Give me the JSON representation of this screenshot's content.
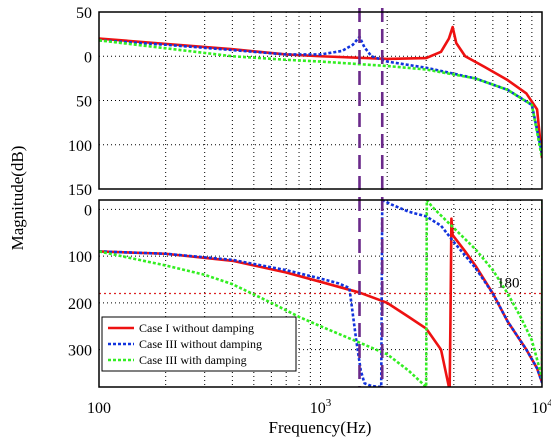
{
  "chart_data": {
    "type": "line",
    "xlabel": "Frequency(Hz)",
    "ylabel": "Magnitude(dB)",
    "x_scale": "log",
    "xlim": [
      100,
      10000
    ],
    "x_ticks": [
      {
        "value": 100,
        "base": "100",
        "exp": ""
      },
      {
        "value": 1000,
        "base": "10",
        "exp": "3"
      },
      {
        "value": 10000,
        "base": "10",
        "exp": "4"
      }
    ],
    "grid": true,
    "legend_position": "bottom-left",
    "vertical_markers": [
      1500,
      1900
    ],
    "panels": [
      {
        "name": "magnitude",
        "ylim": [
          -150,
          50
        ],
        "y_ticks": [
          50,
          0,
          -50,
          -100,
          -150
        ],
        "y_tick_labels": [
          "50",
          "0",
          "50",
          "100",
          "150"
        ],
        "series": [
          {
            "name": "Case I without damping",
            "color": "#ee1111",
            "dash": "solid",
            "points": [
              [
                100,
                20
              ],
              [
                200,
                14
              ],
              [
                400,
                8
              ],
              [
                700,
                2
              ],
              [
                1000,
                0
              ],
              [
                2000,
                -3
              ],
              [
                3000,
                -2
              ],
              [
                3500,
                5
              ],
              [
                3800,
                20
              ],
              [
                3950,
                33
              ],
              [
                4100,
                15
              ],
              [
                4500,
                0
              ],
              [
                5500,
                -12
              ],
              [
                7000,
                -27
              ],
              [
                8500,
                -42
              ],
              [
                9500,
                -60
              ],
              [
                10000,
                -115
              ]
            ]
          },
          {
            "name": "Case III without damping",
            "color": "#1133dd",
            "dash": "dotted",
            "points": [
              [
                100,
                18
              ],
              [
                200,
                13
              ],
              [
                400,
                7
              ],
              [
                700,
                2
              ],
              [
                1000,
                2
              ],
              [
                1250,
                6
              ],
              [
                1400,
                13
              ],
              [
                1500,
                22
              ],
              [
                1580,
                10
              ],
              [
                1700,
                0
              ],
              [
                2000,
                -6
              ],
              [
                3000,
                -13
              ],
              [
                5000,
                -25
              ],
              [
                7000,
                -38
              ],
              [
                9000,
                -55
              ],
              [
                10000,
                -110
              ]
            ]
          },
          {
            "name": "Case III with damping",
            "color": "#33ee22",
            "dash": "dotted",
            "points": [
              [
                100,
                18
              ],
              [
                200,
                9
              ],
              [
                400,
                0
              ],
              [
                700,
                -4
              ],
              [
                1000,
                -6
              ],
              [
                2000,
                -11
              ],
              [
                3000,
                -15
              ],
              [
                5000,
                -25
              ],
              [
                7000,
                -38
              ],
              [
                9000,
                -55
              ],
              [
                10000,
                -115
              ]
            ]
          }
        ]
      },
      {
        "name": "phase",
        "ylim": [
          -380,
          20
        ],
        "y_ticks": [
          0,
          -100,
          -200,
          -300
        ],
        "y_tick_labels": [
          "0",
          "100",
          "200",
          "300"
        ],
        "reference_line": {
          "value": -180,
          "label": "180"
        },
        "series": [
          {
            "name": "Case I without damping",
            "color": "#ee1111",
            "dash": "solid",
            "points": [
              [
                100,
                -90
              ],
              [
                200,
                -95
              ],
              [
                400,
                -110
              ],
              [
                700,
                -135
              ],
              [
                1000,
                -155
              ],
              [
                1500,
                -178
              ],
              [
                2000,
                -200
              ],
              [
                2500,
                -230
              ],
              [
                3000,
                -255
              ],
              [
                3500,
                -300
              ],
              [
                3800,
                -380
              ],
              [
                3830,
                -380
              ],
              [
                3860,
                -240
              ],
              [
                3900,
                -20
              ],
              [
                3950,
                -55
              ],
              [
                4500,
                -90
              ],
              [
                5000,
                -120
              ],
              [
                6000,
                -180
              ],
              [
                7000,
                -240
              ],
              [
                8500,
                -300
              ],
              [
                9500,
                -340
              ],
              [
                10000,
                -370
              ],
              [
                10050,
                20
              ],
              [
                10100,
                20
              ]
            ]
          },
          {
            "name": "Case III without damping",
            "color": "#1133dd",
            "dash": "dotted",
            "points": [
              [
                100,
                -90
              ],
              [
                200,
                -95
              ],
              [
                400,
                -108
              ],
              [
                700,
                -130
              ],
              [
                1000,
                -148
              ],
              [
                1200,
                -158
              ],
              [
                1350,
                -168
              ],
              [
                1450,
                -280
              ],
              [
                1520,
                -345
              ],
              [
                1580,
                -372
              ],
              [
                1700,
                -378
              ],
              [
                1880,
                -380
              ],
              [
                1900,
                20
              ],
              [
                2100,
                10
              ],
              [
                2500,
                -5
              ],
              [
                3000,
                -15
              ],
              [
                3500,
                -35
              ],
              [
                4000,
                -70
              ],
              [
                5000,
                -125
              ],
              [
                6000,
                -180
              ],
              [
                7000,
                -240
              ],
              [
                8500,
                -300
              ],
              [
                9500,
                -340
              ],
              [
                10000,
                -370
              ],
              [
                10050,
                20
              ],
              [
                10100,
                20
              ]
            ]
          },
          {
            "name": "Case III with damping",
            "color": "#33ee22",
            "dash": "dotted",
            "points": [
              [
                100,
                -90
              ],
              [
                200,
                -120
              ],
              [
                300,
                -140
              ],
              [
                400,
                -160
              ],
              [
                600,
                -200
              ],
              [
                800,
                -230
              ],
              [
                1000,
                -250
              ],
              [
                1500,
                -285
              ],
              [
                2000,
                -310
              ],
              [
                2500,
                -345
              ],
              [
                3000,
                -380
              ],
              [
                3020,
                20
              ],
              [
                3200,
                5
              ],
              [
                4000,
                -40
              ],
              [
                5000,
                -85
              ],
              [
                6000,
                -130
              ],
              [
                7000,
                -180
              ],
              [
                8000,
                -230
              ],
              [
                9000,
                -280
              ],
              [
                10000,
                -360
              ],
              [
                10050,
                20
              ],
              [
                10100,
                20
              ]
            ]
          }
        ]
      }
    ]
  }
}
